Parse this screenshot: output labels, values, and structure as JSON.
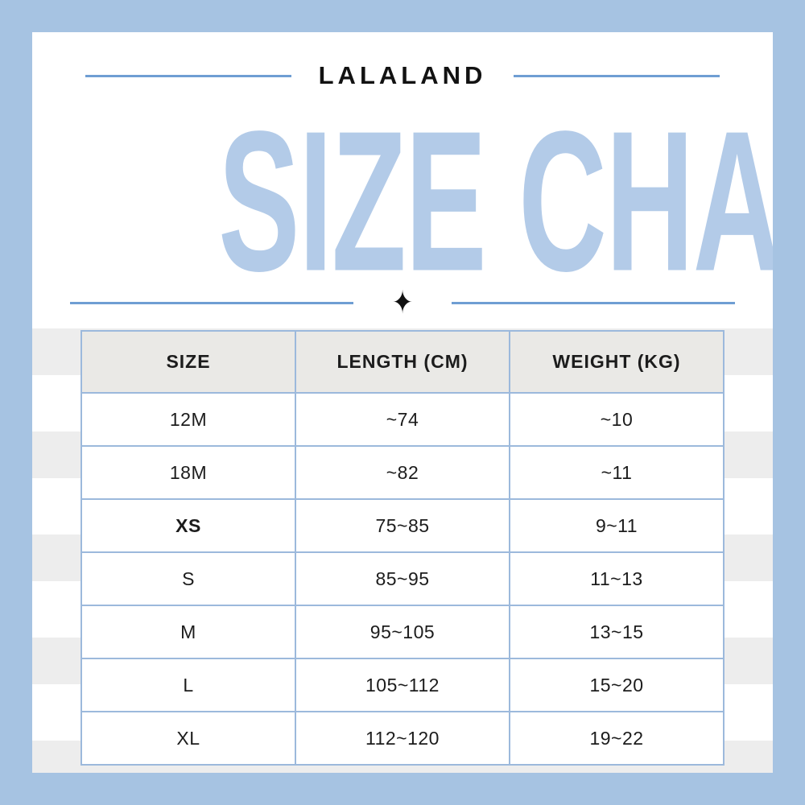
{
  "brand": "LALALAND",
  "title": "SIZE CHART",
  "divider": {
    "star": "✦"
  },
  "colors": {
    "border_blue": "#a6c3e2",
    "line_blue": "#6f9ed3",
    "title_blue": "#b3cbe8",
    "table_border_blue": "#9cb9dc",
    "header_gray": "#eae9e6",
    "stripe_gray": "#ededed",
    "text_dark": "#1c1c1c"
  },
  "chart_data": {
    "type": "table",
    "title": "SIZE CHART",
    "brand": "LALALAND",
    "columns": [
      "SIZE",
      "LENGTH (CM)",
      "WEIGHT (KG)"
    ],
    "rows": [
      [
        "12M",
        "~74",
        "~10"
      ],
      [
        "18M",
        "~82",
        "~11"
      ],
      [
        "XS",
        "75~85",
        "9~11"
      ],
      [
        "S",
        "85~95",
        "11~13"
      ],
      [
        "M",
        "95~105",
        "13~15"
      ],
      [
        "L",
        "105~112",
        "15~20"
      ],
      [
        "XL",
        "112~120",
        "19~22"
      ]
    ]
  }
}
